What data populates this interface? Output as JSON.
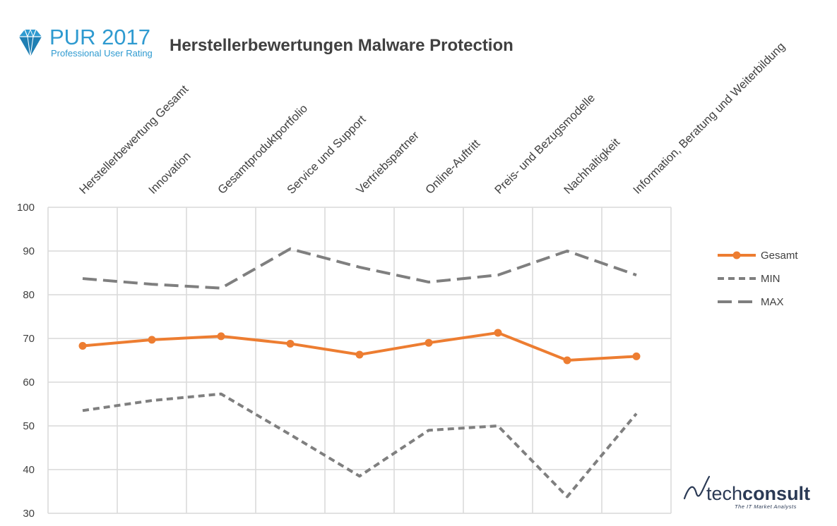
{
  "header": {
    "logo_title": "PUR 2017",
    "logo_subtitle": "Professional User Rating",
    "chart_title": "Herstellerbewertungen Malware Protection"
  },
  "footer_logo": {
    "name_light": "tech",
    "name_bold": "consult",
    "tagline": "The IT Market Analysts"
  },
  "colors": {
    "gesamt": "#ed7d31",
    "min": "#7f7f7f",
    "max": "#7f7f7f",
    "grid": "#d9d9d9",
    "brand_blue": "#2e9ad0",
    "techconsult_navy": "#2b3a55"
  },
  "icons": [
    "pur-diamond-logo-icon",
    "techconsult-swoosh-icon"
  ],
  "chart_data": {
    "type": "line",
    "title": "Herstellerbewertungen Malware Protection",
    "xlabel": "",
    "ylabel": "",
    "ylim": [
      30,
      100
    ],
    "yticks": [
      30,
      40,
      50,
      60,
      70,
      80,
      90,
      100
    ],
    "grid": true,
    "legend_position": "right",
    "category_labels_position": "top-rotated",
    "categories": [
      "Herstellerbewertung Gesamt",
      "Innovation",
      "Gesamtproduktportfolio",
      "Service und Support",
      "Vertriebspartner",
      "Online-Auftritt",
      "Preis- und Bezugsmodelle",
      "Nachhaltigkeit",
      "Information, Beratung und Weiterbildung"
    ],
    "series": [
      {
        "name": "Gesamt",
        "style": "solid-markers",
        "color": "#ed7d31",
        "values": [
          68.3,
          69.7,
          70.5,
          68.8,
          66.3,
          69.0,
          71.3,
          65.0,
          65.9
        ]
      },
      {
        "name": "MIN",
        "style": "short-dash",
        "color": "#7f7f7f",
        "values": [
          53.5,
          55.8,
          57.3,
          48.0,
          38.5,
          49.0,
          50.0,
          33.8,
          52.8
        ]
      },
      {
        "name": "MAX",
        "style": "long-dash",
        "color": "#7f7f7f",
        "values": [
          83.7,
          82.4,
          81.5,
          90.5,
          86.3,
          82.9,
          84.5,
          90.0,
          84.5
        ]
      }
    ]
  }
}
